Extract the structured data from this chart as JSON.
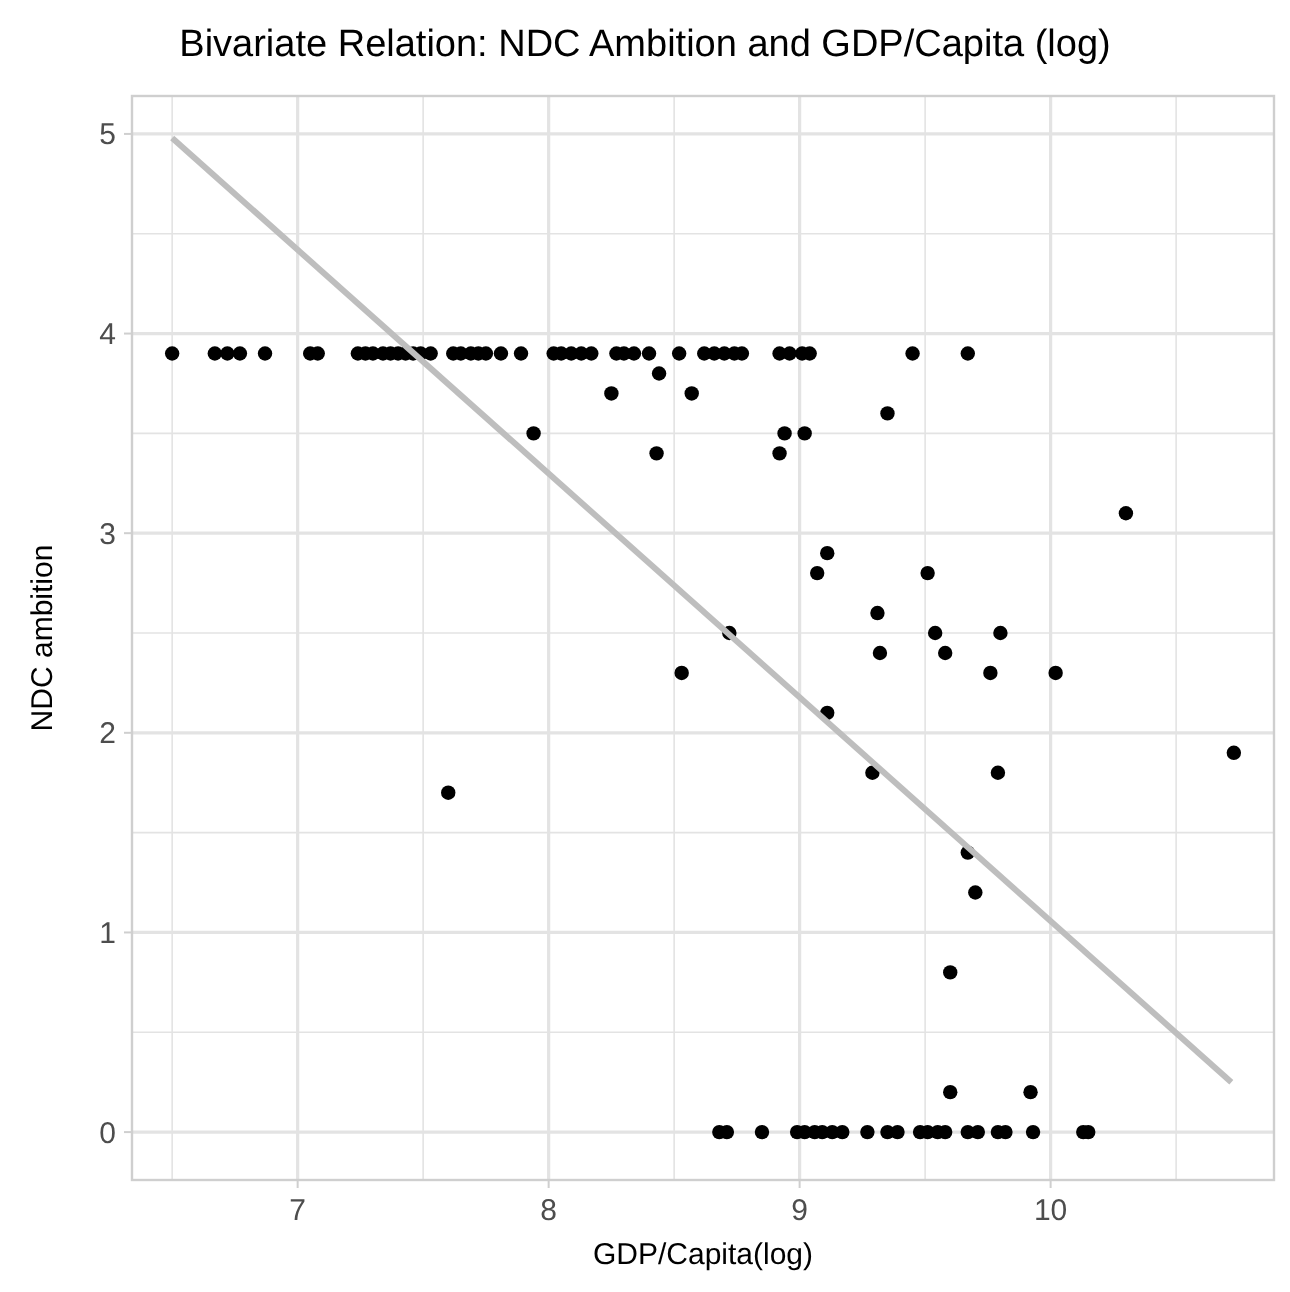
{
  "chart_data": {
    "type": "scatter",
    "title": "Bivariate Relation: NDC Ambition and GDP/Capita (log)",
    "xlabel": "GDP/Capita(log)",
    "ylabel": "NDC ambition",
    "xlim": [
      6.34,
      10.89
    ],
    "ylim": [
      -0.24,
      5.19
    ],
    "xticks": [
      7,
      8,
      9,
      10
    ],
    "yticks": [
      0,
      1,
      2,
      3,
      4,
      5
    ],
    "grid": true,
    "series": [
      {
        "color": "#000000",
        "marker": "circle",
        "x": [
          6.5,
          6.67,
          6.72,
          6.77,
          6.87,
          7.05,
          7.08,
          7.24,
          7.27,
          7.3,
          7.34,
          7.37,
          7.4,
          7.43,
          7.46,
          7.49,
          7.53,
          7.62,
          7.65,
          7.69,
          7.72,
          7.75,
          7.81,
          7.89,
          8.02,
          8.05,
          8.09,
          8.13,
          8.17,
          8.27,
          8.3,
          8.34,
          8.4,
          8.52,
          8.62,
          8.66,
          8.7,
          8.74,
          8.77,
          8.92,
          8.96,
          9.01,
          9.04,
          9.45,
          9.67,
          8.44,
          8.25,
          8.57,
          7.94,
          8.94,
          9.02,
          8.43,
          8.92,
          9.35,
          10.3,
          9.11,
          9.07,
          9.51,
          9.31,
          9.54,
          9.8,
          9.32,
          9.58,
          8.72,
          8.53,
          9.76,
          10.02,
          9.11,
          10.73,
          9.29,
          9.79,
          7.6,
          9.67,
          9.7,
          9.6,
          9.6,
          9.92,
          8.68,
          8.71,
          8.85,
          8.99,
          9.02,
          9.06,
          9.09,
          9.13,
          9.17,
          9.27,
          9.35,
          9.39,
          9.48,
          9.51,
          9.55,
          9.58,
          9.67,
          9.71,
          9.79,
          9.82,
          9.93,
          10.13,
          10.15
        ],
        "values": [
          3.9,
          3.9,
          3.9,
          3.9,
          3.9,
          3.9,
          3.9,
          3.9,
          3.9,
          3.9,
          3.9,
          3.9,
          3.9,
          3.9,
          3.9,
          3.9,
          3.9,
          3.9,
          3.9,
          3.9,
          3.9,
          3.9,
          3.9,
          3.9,
          3.9,
          3.9,
          3.9,
          3.9,
          3.9,
          3.9,
          3.9,
          3.9,
          3.9,
          3.9,
          3.9,
          3.9,
          3.9,
          3.9,
          3.9,
          3.9,
          3.9,
          3.9,
          3.9,
          3.9,
          3.9,
          3.8,
          3.7,
          3.7,
          3.5,
          3.5,
          3.5,
          3.4,
          3.4,
          3.6,
          3.1,
          2.9,
          2.8,
          2.8,
          2.6,
          2.5,
          2.5,
          2.4,
          2.4,
          2.5,
          2.3,
          2.3,
          2.3,
          2.1,
          1.9,
          1.8,
          1.8,
          1.7,
          1.4,
          1.2,
          0.8,
          0.2,
          0.2,
          0,
          0,
          0,
          0,
          0,
          0,
          0,
          0,
          0,
          0,
          0,
          0,
          0,
          0,
          0,
          0,
          0,
          0,
          0,
          0,
          0,
          0,
          0
        ]
      },
      {
        "type": "line",
        "color": "#bebebe",
        "marker": "none",
        "x": [
          6.5,
          10.72
        ],
        "values": [
          4.98,
          0.25
        ]
      }
    ]
  }
}
